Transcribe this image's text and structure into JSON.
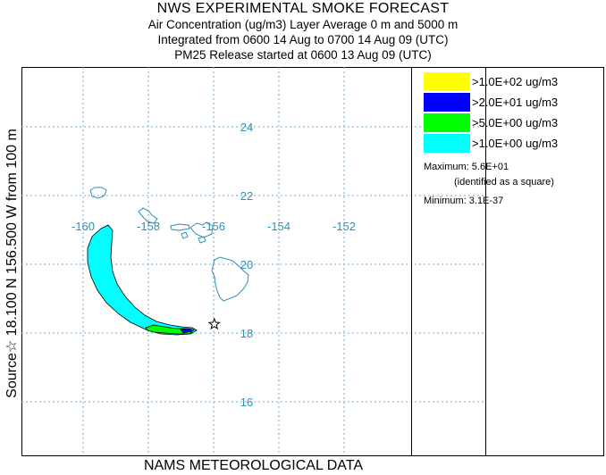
{
  "header": {
    "title": "NWS EXPERIMENTAL SMOKE FORECAST",
    "line2": "Air Concentration (ug/m3) Layer Average    0 m and  5000 m",
    "line3": "Integrated from 0600 14 Aug to 0700 14 Aug 09 (UTC)",
    "line4": "PM25 Release started at 0600 13 Aug 09 (UTC)"
  },
  "side_label": "Source☆ 18.100 N 156.500 W    from  100 m",
  "bottom_label": "NAMS METEOROLOGICAL DATA",
  "colors": {
    "grid": "#6aaed0",
    "coast": "#2f8fb8",
    "level_1": "#ffff00",
    "level_2": "#0000ff",
    "level_3": "#00ff00",
    "level_4": "#00ffff"
  },
  "chart_data": {
    "type": "map",
    "lon_ticks": [
      "-160",
      "-158",
      "-156",
      "-154",
      "-152"
    ],
    "lat_ticks": [
      "24",
      "22",
      "20",
      "18",
      "16"
    ],
    "lon_values": [
      -160,
      -158,
      -156,
      -154,
      -152
    ],
    "lat_values": [
      24,
      22,
      20,
      18,
      16
    ],
    "source": {
      "lat": 18.1,
      "lon": -156.5
    },
    "legend": [
      {
        "label": ">1.0E+02 ug/m3",
        "color": "#ffff00"
      },
      {
        "label": ">2.0E+01 ug/m3",
        "color": "#0000ff"
      },
      {
        "label": ">5.0E+00 ug/m3",
        "color": "#00ff00"
      },
      {
        "label": ">1.0E+00 ug/m3",
        "color": "#00ffff"
      }
    ],
    "maximum": "Maximum: 5.6E+01",
    "maximum_note": "(identified as a square)",
    "minimum": "Minimum: 3.1E-37"
  }
}
